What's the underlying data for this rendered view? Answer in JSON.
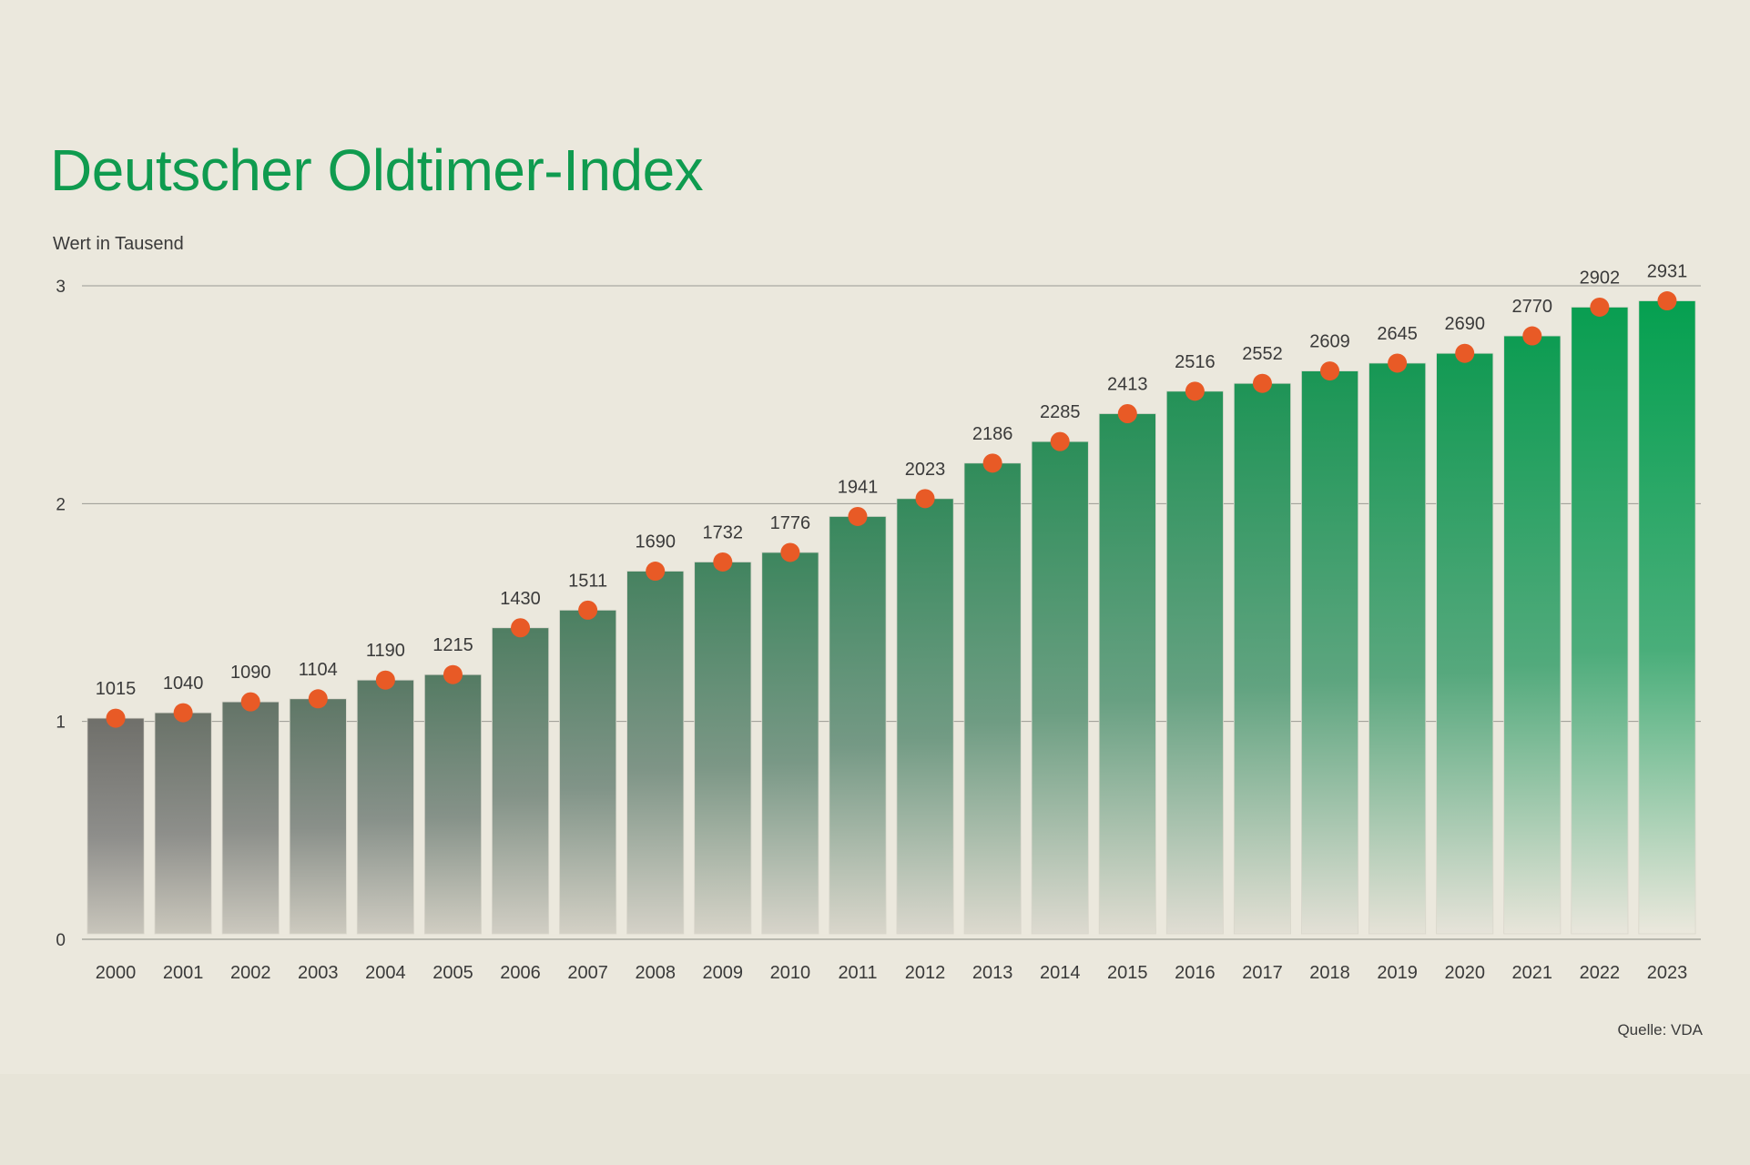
{
  "title": "Deutscher Oldtimer-Index",
  "unit_label": "Wert in Tausend",
  "source": "Quelle: VDA",
  "colors": {
    "background": "#ebe8dd",
    "title": "#0f9b4f",
    "dot": "#e85a26",
    "bar_early_top": "#6f6f6a",
    "bar_late_top": "#05a050",
    "gridline": "#9a9a92"
  },
  "chart_data": {
    "type": "bar",
    "title": "Deutscher Oldtimer-Index",
    "ylabel": "Wert in Tausend",
    "xlabel": "",
    "ylim": [
      0,
      3
    ],
    "yticks": [
      "0",
      "1",
      "2",
      "3"
    ],
    "grid": true,
    "categories": [
      "2000",
      "2001",
      "2002",
      "2003",
      "2004",
      "2005",
      "2006",
      "2007",
      "2008",
      "2009",
      "2010",
      "2011",
      "2012",
      "2013",
      "2014",
      "2015",
      "2016",
      "2017",
      "2018",
      "2019",
      "2020",
      "2021",
      "2022",
      "2023"
    ],
    "values": [
      1015,
      1040,
      1090,
      1104,
      1190,
      1215,
      1430,
      1511,
      1690,
      1732,
      1776,
      1941,
      2023,
      2186,
      2285,
      2413,
      2516,
      2552,
      2609,
      2645,
      2690,
      2770,
      2902,
      2931
    ],
    "value_labels": [
      "1015",
      "1040",
      "1090",
      "1104",
      "1190",
      "1215",
      "1430",
      "1511",
      "1690",
      "1732",
      "1776",
      "1941",
      "2023",
      "2186",
      "2285",
      "2413",
      "2516",
      "2552",
      "2609",
      "2645",
      "2690",
      "2770",
      "2902",
      "2931"
    ],
    "markers": "dot on top of each bar"
  }
}
